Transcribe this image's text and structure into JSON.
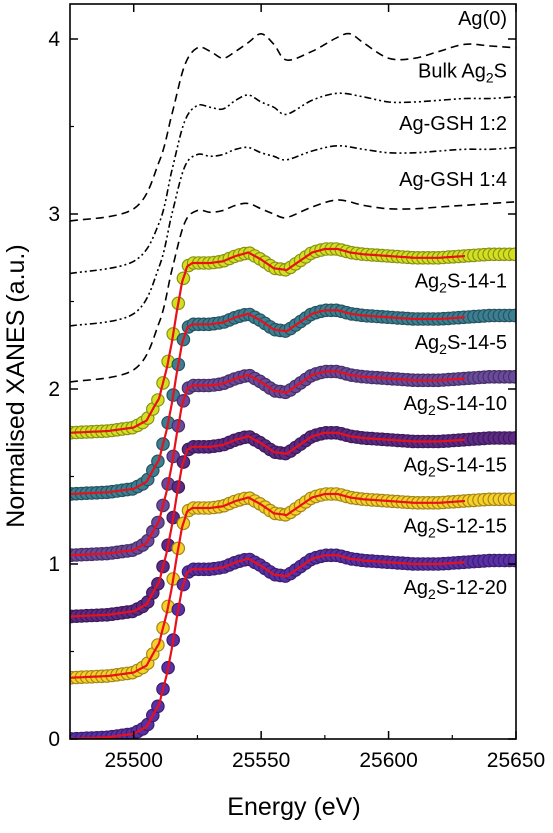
{
  "chart_data": {
    "type": "line",
    "title": "",
    "xlabel": "Energy (eV)",
    "ylabel": "Normalised XANES (a.u.)",
    "xlim": [
      25475,
      25650
    ],
    "ylim": [
      0,
      4.2
    ],
    "x_ticks": [
      {
        "value": 25500,
        "label": "25500"
      },
      {
        "value": 25550,
        "label": "25550"
      },
      {
        "value": 25600,
        "label": "25600"
      },
      {
        "value": 25650,
        "label": "25650"
      }
    ],
    "y_ticks": [
      {
        "value": 0,
        "label": "0"
      },
      {
        "value": 1,
        "label": "1"
      },
      {
        "value": 2,
        "label": "2"
      },
      {
        "value": 3,
        "label": "3"
      },
      {
        "value": 4,
        "label": "4"
      }
    ],
    "grid": false,
    "legend": "labels placed beside each curve",
    "reference_series": [
      {
        "id": "ag0",
        "label": "Ag(0)",
        "style": "dashed",
        "offset": 2.95,
        "x": [
          25475,
          25500,
          25510,
          25515,
          25520,
          25525,
          25530,
          25535,
          25540,
          25545,
          25550,
          25555,
          25560,
          25570,
          25580,
          25585,
          25590,
          25600,
          25610,
          25620,
          25630,
          25640,
          25650
        ],
        "y": [
          0.01,
          0.08,
          0.35,
          0.62,
          0.9,
          1.0,
          0.98,
          0.94,
          0.98,
          1.03,
          1.08,
          1.02,
          0.93,
          0.98,
          1.06,
          1.08,
          1.03,
          0.94,
          0.94,
          0.98,
          1.02,
          1.01,
          1.0
        ]
      },
      {
        "id": "bulk",
        "label_main": "Bulk Ag",
        "label_sub": "2",
        "label_tail": "S",
        "style": "dash-dot-dot",
        "offset": 2.65,
        "x": [
          25475,
          25500,
          25510,
          25515,
          25520,
          25525,
          25530,
          25535,
          25540,
          25545,
          25550,
          25555,
          25560,
          25570,
          25580,
          25590,
          25600,
          25610,
          25620,
          25630,
          25640,
          25650
        ],
        "y": [
          0.01,
          0.08,
          0.3,
          0.6,
          0.88,
          0.97,
          0.96,
          0.95,
          1.0,
          1.03,
          0.99,
          0.96,
          0.92,
          1.0,
          1.04,
          1.02,
          0.99,
          0.99,
          1.0,
          1.01,
          1.01,
          1.02
        ]
      },
      {
        "id": "gsh12",
        "label": "Ag-GSH 1:2",
        "style": "dash-dot-dot",
        "offset": 2.35,
        "x": [
          25475,
          25500,
          25510,
          25515,
          25520,
          25525,
          25530,
          25535,
          25540,
          25545,
          25550,
          25555,
          25560,
          25570,
          25580,
          25590,
          25600,
          25610,
          25620,
          25630,
          25640,
          25650
        ],
        "y": [
          0.01,
          0.08,
          0.35,
          0.65,
          0.92,
          0.99,
          0.98,
          0.99,
          1.02,
          1.03,
          1.0,
          0.98,
          0.96,
          1.01,
          1.04,
          1.02,
          1.0,
          1.0,
          1.01,
          1.02,
          1.02,
          1.03
        ]
      },
      {
        "id": "gsh14",
        "label": "Ag-GSH 1:4",
        "style": "dashed",
        "offset": 2.03,
        "x": [
          25475,
          25500,
          25510,
          25515,
          25520,
          25525,
          25530,
          25535,
          25540,
          25545,
          25550,
          25555,
          25560,
          25570,
          25580,
          25590,
          25600,
          25610,
          25620,
          25630,
          25640,
          25650
        ],
        "y": [
          0.01,
          0.08,
          0.35,
          0.65,
          0.92,
          0.99,
          0.98,
          0.99,
          1.02,
          1.03,
          1.0,
          0.97,
          0.95,
          1.01,
          1.05,
          1.02,
          1.0,
          1.0,
          1.01,
          1.02,
          1.03,
          1.04
        ]
      }
    ],
    "sample_series": [
      {
        "id": "s14_1",
        "label_main": "Ag",
        "label_sub": "2",
        "label_tail": "S-14-1",
        "offset": 1.75,
        "marker_color": "#d2e020"
      },
      {
        "id": "s14_5",
        "label_main": "Ag",
        "label_sub": "2",
        "label_tail": "S-14-5",
        "offset": 1.4,
        "marker_color": "#3c7f93"
      },
      {
        "id": "s14_10",
        "label_main": "Ag",
        "label_sub": "2",
        "label_tail": "S-14-10",
        "offset": 1.05,
        "marker_color": "#6a4a9c"
      },
      {
        "id": "s14_15",
        "label_main": "Ag",
        "label_sub": "2",
        "label_tail": "S-14-15",
        "offset": 0.7,
        "marker_color": "#5d2a86"
      },
      {
        "id": "s12_15",
        "label_main": "Ag",
        "label_sub": "2",
        "label_tail": "S-12-15",
        "offset": 0.35,
        "marker_color": "#f8d028"
      },
      {
        "id": "s12_20",
        "label_main": "Ag",
        "label_sub": "2",
        "label_tail": "S-12-20",
        "offset": 0.0,
        "marker_color": "#5a30a8"
      }
    ],
    "sample_shape": {
      "x": [
        25475,
        25490,
        25500,
        25505,
        25510,
        25513,
        25515,
        25517,
        25519,
        25521,
        25523,
        25525,
        25530,
        25535,
        25540,
        25545,
        25550,
        25555,
        25560,
        25565,
        25570,
        25575,
        25580,
        25585,
        25590,
        25600,
        25610,
        25620,
        25630,
        25640,
        25650
      ],
      "y": [
        0.0,
        0.01,
        0.03,
        0.07,
        0.2,
        0.37,
        0.52,
        0.7,
        0.86,
        0.95,
        0.97,
        0.97,
        0.97,
        0.98,
        1.01,
        1.03,
        0.99,
        0.94,
        0.93,
        0.98,
        1.03,
        1.05,
        1.05,
        1.03,
        1.02,
        1.01,
        1.0,
        1.0,
        1.01,
        1.02,
        1.02
      ]
    },
    "fit_x_end": 25630,
    "fit_color": "#e8101a"
  }
}
